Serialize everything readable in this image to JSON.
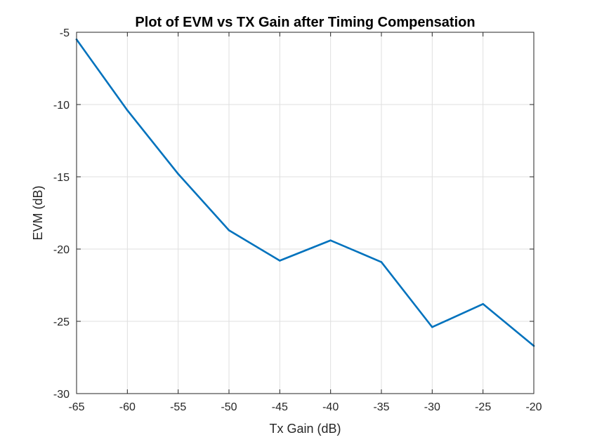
{
  "chart_data": {
    "type": "line",
    "title": "Plot of EVM vs TX Gain after Timing Compensation",
    "xlabel": "Tx Gain (dB)",
    "ylabel": "EVM (dB)",
    "xlim": [
      -65,
      -20
    ],
    "ylim": [
      -30,
      -5
    ],
    "xticks": [
      -65,
      -60,
      -55,
      -50,
      -45,
      -40,
      -35,
      -30,
      -25,
      -20
    ],
    "xtick_labels": [
      "-65",
      "-60",
      "-55",
      "-50",
      "-45",
      "-40",
      "-35",
      "-30",
      "-25",
      "-20"
    ],
    "yticks": [
      -30,
      -25,
      -20,
      -15,
      -10,
      -5
    ],
    "ytick_labels": [
      "-30",
      "-25",
      "-20",
      "-15",
      "-10",
      "-5"
    ],
    "grid": true,
    "series": [
      {
        "color": "#0072bd",
        "x": [
          -65,
          -60,
          -55,
          -50,
          -45,
          -40,
          -35,
          -30,
          -25,
          -20
        ],
        "y": [
          -5.5,
          -10.4,
          -14.8,
          -18.7,
          -20.8,
          -19.4,
          -20.9,
          -25.4,
          -23.8,
          -26.7
        ]
      }
    ]
  }
}
